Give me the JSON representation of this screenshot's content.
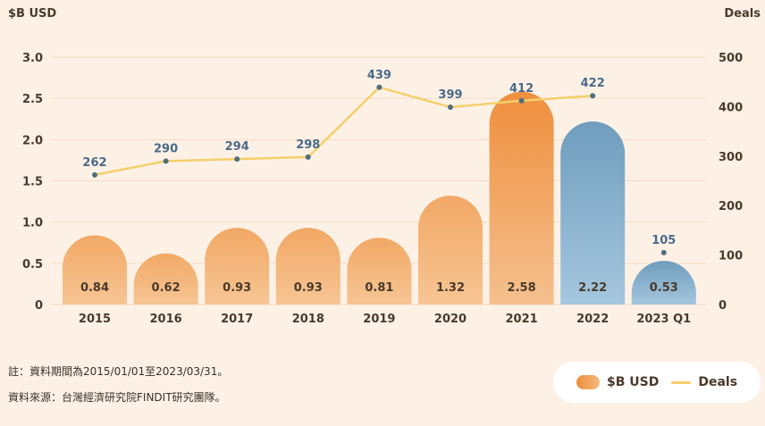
{
  "chart_data": {
    "type": "bar",
    "categories": [
      "2015",
      "2016",
      "2017",
      "2018",
      "2019",
      "2020",
      "2021",
      "2022",
      "2023 Q1"
    ],
    "series": [
      {
        "name": "$B USD",
        "axis": "left",
        "values": [
          0.84,
          0.62,
          0.93,
          0.93,
          0.81,
          1.32,
          2.58,
          2.22,
          0.53
        ],
        "value_labels": [
          "0.84",
          "0.62",
          "0.93",
          "0.93",
          "0.81",
          "1.32",
          "2.58",
          "2.22",
          "0.53"
        ]
      },
      {
        "name": "Deals",
        "axis": "right",
        "type": "line",
        "values": [
          262,
          290,
          294,
          298,
          439,
          399,
          412,
          422,
          105
        ],
        "value_labels": [
          "262",
          "290",
          "294",
          "298",
          "439",
          "399",
          "412",
          "422",
          "105"
        ]
      }
    ],
    "y_left": {
      "label": "$B USD",
      "ticks": [
        "3.0",
        "2.5",
        "2.0",
        "1.5",
        "1.0",
        "0.5",
        "0"
      ],
      "ylim": [
        0,
        3.0
      ]
    },
    "y_right": {
      "label": "Deals",
      "ticks": [
        "500",
        "400",
        "300",
        "200",
        "100",
        "0"
      ],
      "ylim": [
        0,
        500
      ]
    },
    "deals_line_connects_last": false,
    "colors": {
      "bar_orange_top": "#ee8f3d",
      "bar_orange_bottom": "#f6c594",
      "bar_blue_top": "#6f9dbd",
      "bar_blue_bottom": "#a5c6de",
      "line": "#f5cf6a",
      "point": "#4e6e7e",
      "deal_label": "#4a6a8a"
    },
    "grid": true,
    "legend_position": "bottom-right"
  },
  "notes": {
    "note1": "註：資料期間為2015/01/01至2023/03/31。",
    "note2": "資料來源：台灣經濟研究院FINDIT研究團隊。"
  },
  "legend": {
    "bar_label": "$B USD",
    "line_label": "Deals"
  }
}
